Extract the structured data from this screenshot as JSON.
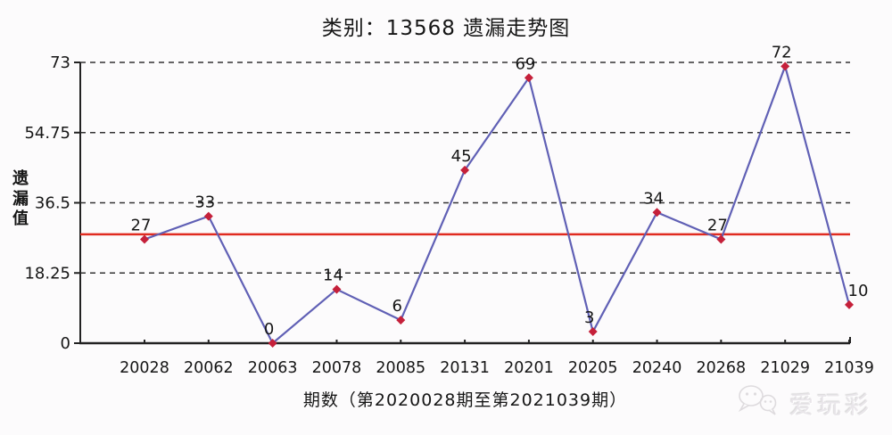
{
  "title": "类别：13568 遗漏走势图",
  "watermark": {
    "icon": "wechat-icon",
    "label": "爱玩彩"
  },
  "chart_data": {
    "type": "line",
    "title": "类别：13568 遗漏走势图",
    "xlabel": "期数（第2020028期至第2021039期）",
    "ylabel": "遗漏值",
    "categories": [
      "20028",
      "20062",
      "20063",
      "20078",
      "20085",
      "20131",
      "20201",
      "20205",
      "20240",
      "20268",
      "21029",
      "21039"
    ],
    "values": [
      27,
      33,
      0,
      14,
      6,
      45,
      69,
      3,
      34,
      27,
      72,
      10
    ],
    "yticks": [
      0,
      18.25,
      36.5,
      54.75,
      73
    ],
    "ylim": [
      0,
      73
    ],
    "mean_line_value": 28.3,
    "grid": "horizontal-dashed",
    "legend": "none",
    "colors": {
      "line": "#6060b5",
      "marker": "#c5203a",
      "mean_line": "#e02b20",
      "grid": "#333333",
      "axis": "#222222",
      "text": "#161616"
    }
  }
}
